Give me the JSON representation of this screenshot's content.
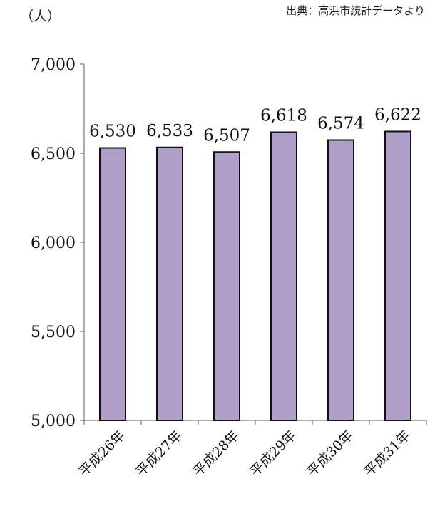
{
  "header": {
    "unit": "（人）",
    "source": "出典：高浜市統計データより"
  },
  "chart_data": {
    "type": "bar",
    "categories": [
      "平成26年",
      "平成27年",
      "平成28年",
      "平成29年",
      "平成30年",
      "平成31年"
    ],
    "values": [
      6530,
      6533,
      6507,
      6618,
      6574,
      6622
    ],
    "data_labels": [
      "6,530",
      "6,533",
      "6,507",
      "6,618",
      "6,574",
      "6,622"
    ],
    "yticks": [
      5000,
      5500,
      6000,
      6500,
      7000
    ],
    "ytick_labels": [
      "5,000",
      "5,500",
      "6,000",
      "6,500",
      "7,000"
    ],
    "ylim": [
      5000,
      7000
    ],
    "grid": false,
    "bar_color": "#b09ec8",
    "bar_edge": "#111111"
  }
}
